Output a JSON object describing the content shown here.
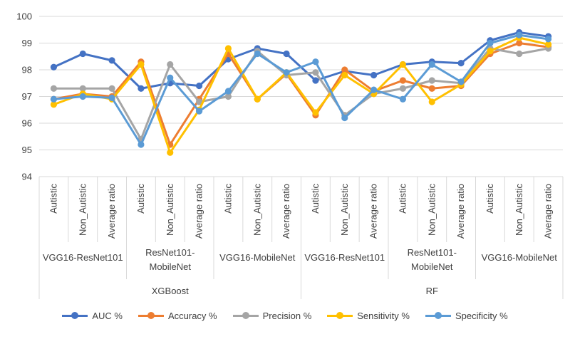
{
  "chart_data": {
    "type": "line",
    "title": "",
    "xlabel": "",
    "ylabel": "",
    "ylim": [
      94,
      100
    ],
    "yticks": [
      94,
      95,
      96,
      97,
      98,
      99,
      100
    ],
    "grid": true,
    "legend_position": "bottom",
    "categories": [
      "Autistic",
      "Non_Autistic",
      "Average ratio",
      "Autistic",
      "Non_Autistic",
      "Average ratio",
      "Autistic",
      "Non_Autistic",
      "Average ratio",
      "Autistic",
      "Non_Autistic",
      "Average ratio",
      "Autistic",
      "Non_Autistic",
      "Average ratio",
      "Autistic",
      "Non_Autistic",
      "Average ratio"
    ],
    "groups": [
      {
        "label": "VGG16-ResNet101",
        "span": 3
      },
      {
        "label": "ResNet101-\nMobileNet",
        "span": 3
      },
      {
        "label": "VGG16-MobileNet",
        "span": 3
      },
      {
        "label": "VGG16-ResNet101",
        "span": 3
      },
      {
        "label": "ResNet101-\nMobileNet",
        "span": 3
      },
      {
        "label": "VGG16-MobileNet",
        "span": 3
      }
    ],
    "supergroups": [
      {
        "label": "XGBoost",
        "span": 9
      },
      {
        "label": "RF",
        "span": 9
      }
    ],
    "series": [
      {
        "name": "AUC %",
        "color": "#4472C4",
        "values": [
          98.1,
          98.6,
          98.35,
          97.3,
          97.5,
          97.4,
          98.4,
          98.8,
          98.6,
          97.6,
          97.95,
          97.8,
          98.2,
          98.3,
          98.25,
          99.1,
          99.4,
          99.25
        ]
      },
      {
        "name": "Accuracy %",
        "color": "#ED7D31",
        "values": [
          96.9,
          97.1,
          97.0,
          98.3,
          95.2,
          96.9,
          98.6,
          96.9,
          97.85,
          96.3,
          98.0,
          97.2,
          97.6,
          97.3,
          97.4,
          98.6,
          99.0,
          98.85
        ]
      },
      {
        "name": "Precision %",
        "color": "#A5A5A5",
        "values": [
          97.3,
          97.3,
          97.3,
          95.4,
          98.2,
          96.8,
          97.0,
          98.7,
          97.8,
          97.9,
          96.3,
          97.1,
          97.3,
          97.6,
          97.5,
          98.8,
          98.6,
          98.8
        ]
      },
      {
        "name": "Sensitivity %",
        "color": "#FFC000",
        "values": [
          96.7,
          97.1,
          96.9,
          98.2,
          94.9,
          96.5,
          98.8,
          96.9,
          97.9,
          96.4,
          97.8,
          97.1,
          98.2,
          96.8,
          97.45,
          98.7,
          99.2,
          98.95
        ]
      },
      {
        "name": "Specificity %",
        "color": "#5B9BD5",
        "values": [
          96.9,
          97.0,
          96.95,
          95.2,
          97.7,
          96.45,
          97.2,
          98.6,
          97.9,
          98.3,
          96.2,
          97.25,
          96.9,
          98.2,
          97.55,
          99.0,
          99.3,
          99.15
        ]
      }
    ]
  }
}
